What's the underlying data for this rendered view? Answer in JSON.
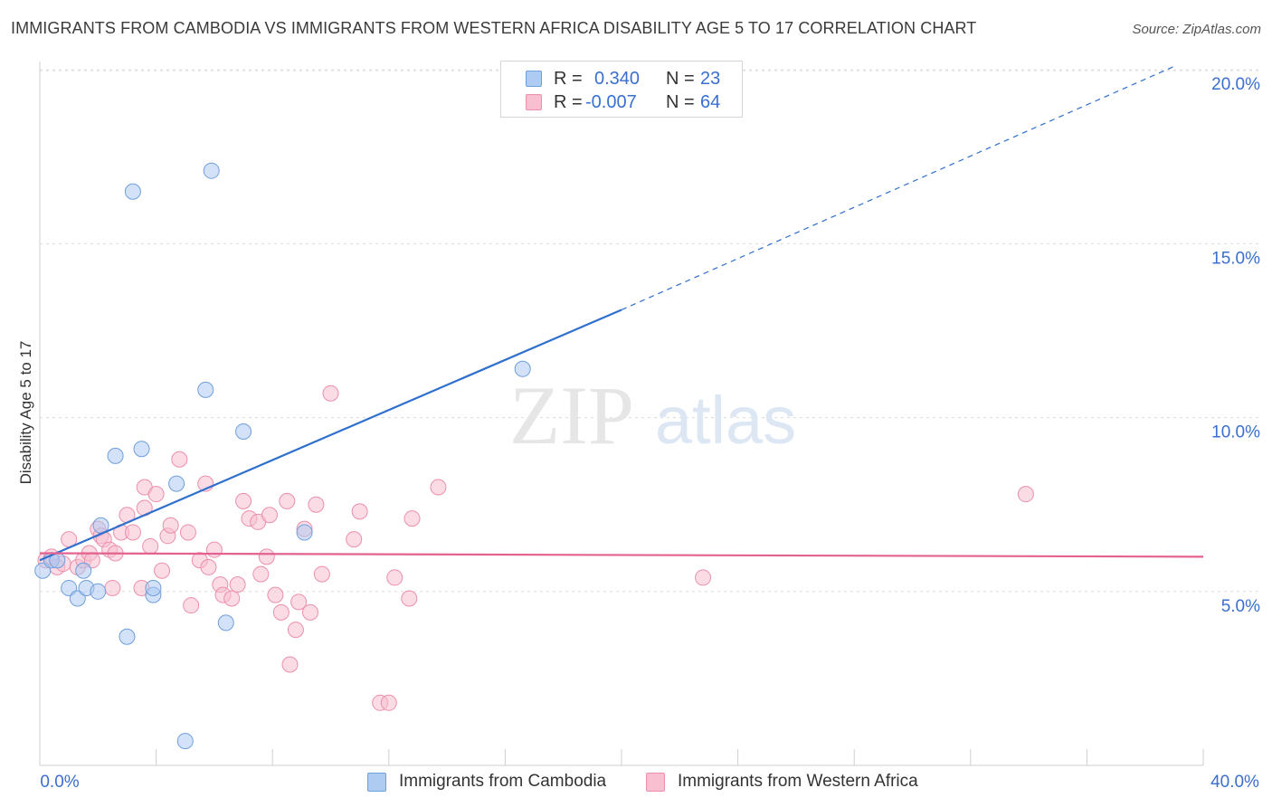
{
  "title": "IMMIGRANTS FROM CAMBODIA VS IMMIGRANTS FROM WESTERN AFRICA DISABILITY AGE 5 TO 17 CORRELATION CHART",
  "source": "Source: ZipAtlas.com",
  "watermark": {
    "zip": "ZIP",
    "atlas": "atlas"
  },
  "stats": {
    "cambodia": {
      "r_label": "R =",
      "r_value": "0.340",
      "n_label": "N =",
      "n_value": "23"
    },
    "western_africa": {
      "r_label": "R =",
      "r_value": "-0.007",
      "n_label": "N =",
      "n_value": "64"
    }
  },
  "legend": {
    "cambodia": "Immigrants from Cambodia",
    "western_africa": "Immigrants from Western Africa"
  },
  "colors": {
    "cambodia_fill": "#aecbf2",
    "cambodia_stroke": "#6f9fdc",
    "cambodia_line": "#2f6fce",
    "western_africa_fill": "#f7bfd0",
    "western_africa_stroke": "#ec8fab",
    "western_africa_line": "#e4628f",
    "tick_label": "#3a6fd0"
  },
  "chart_data": {
    "type": "scatter",
    "xlabel": "",
    "ylabel": "Disability Age 5 to 17",
    "xlim": [
      0,
      40
    ],
    "ylim": [
      0,
      20.5
    ],
    "x_tick_labels": [
      "0.0%",
      "40.0%"
    ],
    "y_ticks": [
      5,
      10,
      15,
      20
    ],
    "y_tick_labels": [
      "5.0%",
      "10.0%",
      "15.0%",
      "20.0%"
    ],
    "grid": "horizontal dashed",
    "legend_position": "bottom",
    "series": [
      {
        "name": "Immigrants from Cambodia",
        "trend": {
          "x_start": 0,
          "y_start": 5.9,
          "x_end_solid": 20,
          "y_end_solid": 13.1,
          "x_end_dashed": 39.0,
          "y_end_dashed": 20.1
        },
        "points": [
          [
            0.1,
            5.6
          ],
          [
            0.4,
            5.9
          ],
          [
            0.6,
            5.9
          ],
          [
            1.0,
            5.1
          ],
          [
            1.3,
            4.8
          ],
          [
            1.5,
            5.6
          ],
          [
            1.6,
            5.1
          ],
          [
            2.0,
            5.0
          ],
          [
            2.1,
            6.9
          ],
          [
            2.6,
            8.9
          ],
          [
            3.0,
            3.7
          ],
          [
            3.2,
            16.5
          ],
          [
            3.5,
            9.1
          ],
          [
            3.9,
            4.9
          ],
          [
            3.9,
            5.1
          ],
          [
            4.7,
            8.1
          ],
          [
            5.0,
            0.7
          ],
          [
            5.7,
            10.8
          ],
          [
            5.9,
            17.1
          ],
          [
            6.4,
            4.1
          ],
          [
            7.0,
            9.6
          ],
          [
            9.1,
            6.7
          ],
          [
            16.6,
            11.4
          ]
        ]
      },
      {
        "name": "Immigrants from Western Africa",
        "trend": {
          "x_start": 0,
          "y_start": 6.1,
          "x_end": 40,
          "y_end": 6.0
        },
        "points": [
          [
            0.2,
            5.9
          ],
          [
            0.4,
            6.0
          ],
          [
            0.6,
            5.7
          ],
          [
            0.8,
            5.8
          ],
          [
            1.0,
            6.5
          ],
          [
            1.3,
            5.7
          ],
          [
            1.5,
            5.9
          ],
          [
            1.7,
            6.1
          ],
          [
            1.8,
            5.9
          ],
          [
            2.0,
            6.8
          ],
          [
            2.1,
            6.6
          ],
          [
            2.2,
            6.5
          ],
          [
            2.4,
            6.2
          ],
          [
            2.5,
            5.1
          ],
          [
            2.6,
            6.1
          ],
          [
            2.8,
            6.7
          ],
          [
            3.0,
            7.2
          ],
          [
            3.2,
            6.7
          ],
          [
            3.5,
            5.1
          ],
          [
            3.6,
            7.4
          ],
          [
            3.6,
            8.0
          ],
          [
            3.8,
            6.3
          ],
          [
            4.0,
            7.8
          ],
          [
            4.2,
            5.6
          ],
          [
            4.4,
            6.6
          ],
          [
            4.5,
            6.9
          ],
          [
            4.8,
            8.8
          ],
          [
            5.1,
            6.7
          ],
          [
            5.2,
            4.6
          ],
          [
            5.5,
            5.9
          ],
          [
            5.7,
            8.1
          ],
          [
            5.8,
            5.7
          ],
          [
            6.0,
            6.2
          ],
          [
            6.2,
            5.2
          ],
          [
            6.3,
            4.9
          ],
          [
            6.6,
            4.8
          ],
          [
            6.8,
            5.2
          ],
          [
            7.0,
            7.6
          ],
          [
            7.2,
            7.1
          ],
          [
            7.5,
            7.0
          ],
          [
            7.6,
            5.5
          ],
          [
            7.8,
            6.0
          ],
          [
            7.9,
            7.2
          ],
          [
            8.1,
            4.9
          ],
          [
            8.3,
            4.4
          ],
          [
            8.5,
            7.6
          ],
          [
            8.6,
            2.9
          ],
          [
            8.8,
            3.9
          ],
          [
            8.9,
            4.7
          ],
          [
            9.1,
            6.8
          ],
          [
            9.3,
            4.4
          ],
          [
            9.5,
            7.5
          ],
          [
            9.7,
            5.5
          ],
          [
            10.0,
            10.7
          ],
          [
            10.8,
            6.5
          ],
          [
            11.0,
            7.3
          ],
          [
            11.7,
            1.8
          ],
          [
            12.0,
            1.8
          ],
          [
            12.2,
            5.4
          ],
          [
            12.7,
            4.8
          ],
          [
            12.8,
            7.1
          ],
          [
            13.7,
            8.0
          ],
          [
            22.8,
            5.4
          ],
          [
            33.9,
            7.8
          ]
        ]
      }
    ]
  }
}
